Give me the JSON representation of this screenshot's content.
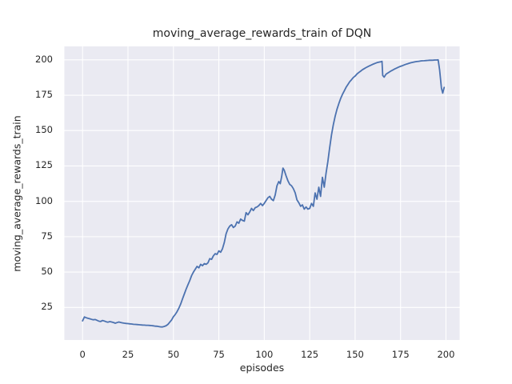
{
  "chart_data": {
    "type": "line",
    "title": "moving_average_rewards_train of DQN",
    "xlabel": "episodes",
    "ylabel": "moving_average_rewards_train",
    "xticks": [
      0,
      25,
      50,
      75,
      100,
      125,
      150,
      175,
      200
    ],
    "yticks": [
      25,
      50,
      75,
      100,
      125,
      150,
      175,
      200
    ],
    "xlim": [
      -10,
      207.5
    ],
    "ylim": [
      2,
      209.5
    ],
    "grid": true,
    "legend": false,
    "style": {
      "line_color": "#4C72B0",
      "background_color": "#EAEAF2",
      "grid_color": "#FFFFFF",
      "text_color": "#262626"
    },
    "series": [
      {
        "name": "moving_average_rewards_train",
        "points": [
          [
            0,
            15.5
          ],
          [
            1,
            18.3
          ],
          [
            2,
            17.7
          ],
          [
            3,
            17.3
          ],
          [
            4,
            17
          ],
          [
            5,
            16.6
          ],
          [
            6,
            16.3
          ],
          [
            7,
            16.5
          ],
          [
            8,
            15.9
          ],
          [
            9,
            15.3
          ],
          [
            10,
            15.1
          ],
          [
            11,
            15.8
          ],
          [
            12,
            15.4
          ],
          [
            13,
            14.9
          ],
          [
            14,
            14.6
          ],
          [
            15,
            15
          ],
          [
            16,
            14.7
          ],
          [
            17,
            14.4
          ],
          [
            18,
            13.9
          ],
          [
            19,
            14.3
          ],
          [
            20,
            14.7
          ],
          [
            21,
            14.4
          ],
          [
            22,
            14.1
          ],
          [
            23,
            13.9
          ],
          [
            24,
            13.7
          ],
          [
            25,
            13.6
          ],
          [
            26,
            13.4
          ],
          [
            27,
            13.3
          ],
          [
            28,
            13.1
          ],
          [
            29,
            13
          ],
          [
            30,
            12.9
          ],
          [
            31,
            12.8
          ],
          [
            32,
            12.7
          ],
          [
            33,
            12.6
          ],
          [
            34,
            12.5
          ],
          [
            35,
            12.4
          ],
          [
            36,
            12.4
          ],
          [
            37,
            12.3
          ],
          [
            38,
            12.2
          ],
          [
            39,
            12
          ],
          [
            40,
            11.8
          ],
          [
            41,
            11.7
          ],
          [
            42,
            11.5
          ],
          [
            43,
            11.3
          ],
          [
            44,
            11.2
          ],
          [
            45,
            11.6
          ],
          [
            46,
            12.1
          ],
          [
            47,
            13.1
          ],
          [
            48,
            14.6
          ],
          [
            49,
            16.2
          ],
          [
            50,
            18.5
          ],
          [
            51,
            20
          ],
          [
            52,
            22
          ],
          [
            53,
            24.5
          ],
          [
            54,
            27.5
          ],
          [
            55,
            31
          ],
          [
            56,
            34.5
          ],
          [
            57,
            38
          ],
          [
            58,
            41
          ],
          [
            59,
            44
          ],
          [
            60,
            47.5
          ],
          [
            61,
            50
          ],
          [
            62,
            52
          ],
          [
            63,
            54
          ],
          [
            64,
            53
          ],
          [
            65,
            55.5
          ],
          [
            66,
            54.5
          ],
          [
            67,
            56
          ],
          [
            68,
            55.5
          ],
          [
            69,
            56.5
          ],
          [
            70,
            59.5
          ],
          [
            71,
            59
          ],
          [
            72,
            61.5
          ],
          [
            73,
            63
          ],
          [
            74,
            62.5
          ],
          [
            75,
            65
          ],
          [
            76,
            64
          ],
          [
            77,
            66.5
          ],
          [
            78,
            71
          ],
          [
            79,
            77
          ],
          [
            80,
            80.5
          ],
          [
            81,
            82.5
          ],
          [
            82,
            83.5
          ],
          [
            83,
            81.5
          ],
          [
            84,
            82.5
          ],
          [
            85,
            85.5
          ],
          [
            86,
            84.5
          ],
          [
            87,
            87.5
          ],
          [
            88,
            86.5
          ],
          [
            89,
            86
          ],
          [
            90,
            92
          ],
          [
            91,
            90.5
          ],
          [
            92,
            92.5
          ],
          [
            93,
            95
          ],
          [
            94,
            93.5
          ],
          [
            95,
            95.5
          ],
          [
            96,
            96
          ],
          [
            97,
            97
          ],
          [
            98,
            98.5
          ],
          [
            99,
            97
          ],
          [
            100,
            98.5
          ],
          [
            101,
            100.5
          ],
          [
            102,
            102.5
          ],
          [
            103,
            103.5
          ],
          [
            104,
            101.5
          ],
          [
            105,
            100.5
          ],
          [
            106,
            104.5
          ],
          [
            107,
            111
          ],
          [
            108,
            114
          ],
          [
            108.8,
            112.5
          ],
          [
            109.6,
            117.5
          ],
          [
            110.3,
            123.5
          ],
          [
            111,
            122
          ],
          [
            112,
            118
          ],
          [
            113,
            114.5
          ],
          [
            114,
            112
          ],
          [
            115,
            111
          ],
          [
            116,
            109
          ],
          [
            117,
            106
          ],
          [
            118,
            101
          ],
          [
            119,
            99
          ],
          [
            120,
            96.5
          ],
          [
            121,
            97.5
          ],
          [
            122,
            94.5
          ],
          [
            123,
            96
          ],
          [
            124,
            94.5
          ],
          [
            125,
            95
          ],
          [
            126,
            98.5
          ],
          [
            127,
            96.5
          ],
          [
            128,
            106
          ],
          [
            129,
            101.5
          ],
          [
            130,
            110
          ],
          [
            131,
            103.5
          ],
          [
            132,
            117
          ],
          [
            133,
            110
          ],
          [
            134,
            120
          ],
          [
            135,
            128
          ],
          [
            136,
            138
          ],
          [
            137,
            147
          ],
          [
            138,
            154
          ],
          [
            139,
            160
          ],
          [
            140,
            165
          ],
          [
            141,
            169
          ],
          [
            142,
            172.5
          ],
          [
            143,
            175.5
          ],
          [
            144,
            178
          ],
          [
            145,
            180.5
          ],
          [
            146,
            182.5
          ],
          [
            147,
            184.5
          ],
          [
            148,
            186
          ],
          [
            149,
            187.5
          ],
          [
            150,
            188.5
          ],
          [
            151,
            190
          ],
          [
            152,
            191
          ],
          [
            153,
            192
          ],
          [
            154,
            193
          ],
          [
            155,
            193.8
          ],
          [
            156,
            194.5
          ],
          [
            157,
            195.2
          ],
          [
            158,
            195.8
          ],
          [
            159,
            196.4
          ],
          [
            160,
            197
          ],
          [
            161,
            197.5
          ],
          [
            162,
            198
          ],
          [
            163,
            198.3
          ],
          [
            164,
            198.6
          ],
          [
            164.8,
            198.9
          ],
          [
            165.2,
            189
          ],
          [
            166,
            187.8
          ],
          [
            167,
            189.8
          ],
          [
            168,
            190.7
          ],
          [
            169,
            191.5
          ],
          [
            170,
            192.3
          ],
          [
            171,
            193
          ],
          [
            172,
            193.7
          ],
          [
            173,
            194.3
          ],
          [
            174,
            194.9
          ],
          [
            175,
            195.4
          ],
          [
            176,
            195.9
          ],
          [
            177,
            196.4
          ],
          [
            178,
            196.9
          ],
          [
            179,
            197.3
          ],
          [
            180,
            197.7
          ],
          [
            181,
            198
          ],
          [
            182,
            198.3
          ],
          [
            183,
            198.6
          ],
          [
            184,
            198.8
          ],
          [
            185,
            199
          ],
          [
            186,
            199.2
          ],
          [
            187,
            199.3
          ],
          [
            188,
            199.4
          ],
          [
            189,
            199.5
          ],
          [
            190,
            199.6
          ],
          [
            191,
            199.7
          ],
          [
            192,
            199.7
          ],
          [
            193,
            199.8
          ],
          [
            194,
            199.9
          ],
          [
            195,
            199.9
          ],
          [
            195.7,
            200
          ],
          [
            196.5,
            193
          ],
          [
            197.5,
            180
          ],
          [
            198.2,
            176.5
          ],
          [
            199,
            180.5
          ]
        ]
      }
    ]
  }
}
